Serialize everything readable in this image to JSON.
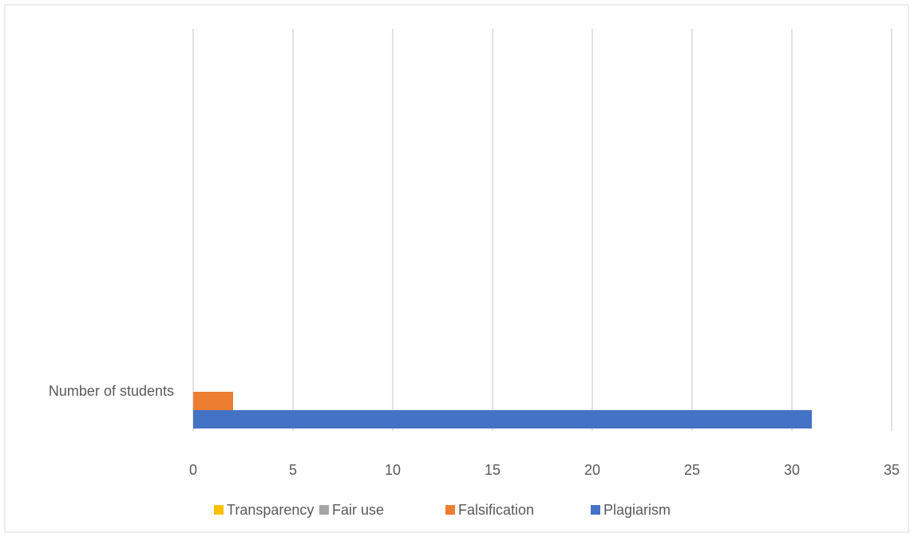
{
  "chart_data": {
    "type": "hbar",
    "categories": [
      "Number of students"
    ],
    "series": [
      {
        "name": "Plagiarism",
        "color": "#4472c4",
        "values": [
          31
        ]
      },
      {
        "name": "Falsification",
        "color": "#ed7d31",
        "values": [
          2
        ]
      },
      {
        "name": "Fair use",
        "color": "#a5a5a5",
        "values": [
          0
        ]
      },
      {
        "name": "Transparency",
        "color": "#ffc000",
        "values": [
          0
        ]
      }
    ],
    "xlim": [
      0,
      35
    ],
    "xticks": [
      0,
      5,
      10,
      15,
      20,
      25,
      30,
      35
    ],
    "grid": true,
    "legend": "bottom"
  }
}
